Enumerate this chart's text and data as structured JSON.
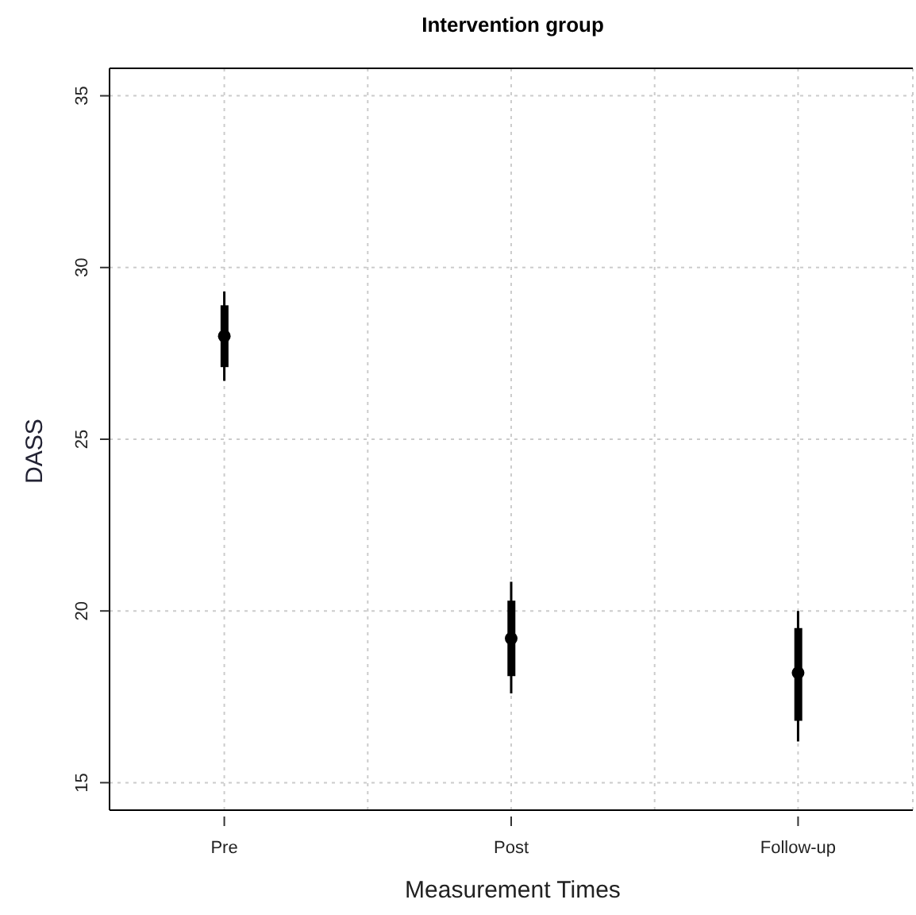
{
  "chart_data": {
    "type": "box",
    "title": "Intervention group",
    "xlabel": "Measurement Times",
    "ylabel": "DASS",
    "categories": [
      "Pre",
      "Post",
      "Follow-up"
    ],
    "color": "#000000",
    "boxes": [
      {
        "low": 26.7,
        "q1": 27.1,
        "median": 28.0,
        "q3": 28.9,
        "high": 29.3
      },
      {
        "low": 17.6,
        "q1": 18.1,
        "median": 19.2,
        "q3": 20.3,
        "high": 20.85
      },
      {
        "low": 16.2,
        "q1": 16.8,
        "median": 18.2,
        "q3": 19.5,
        "high": 20.0
      }
    ],
    "ylim": [
      14.2,
      35.8
    ],
    "yticks": [
      15,
      20,
      25,
      30,
      35
    ],
    "grid": true
  }
}
